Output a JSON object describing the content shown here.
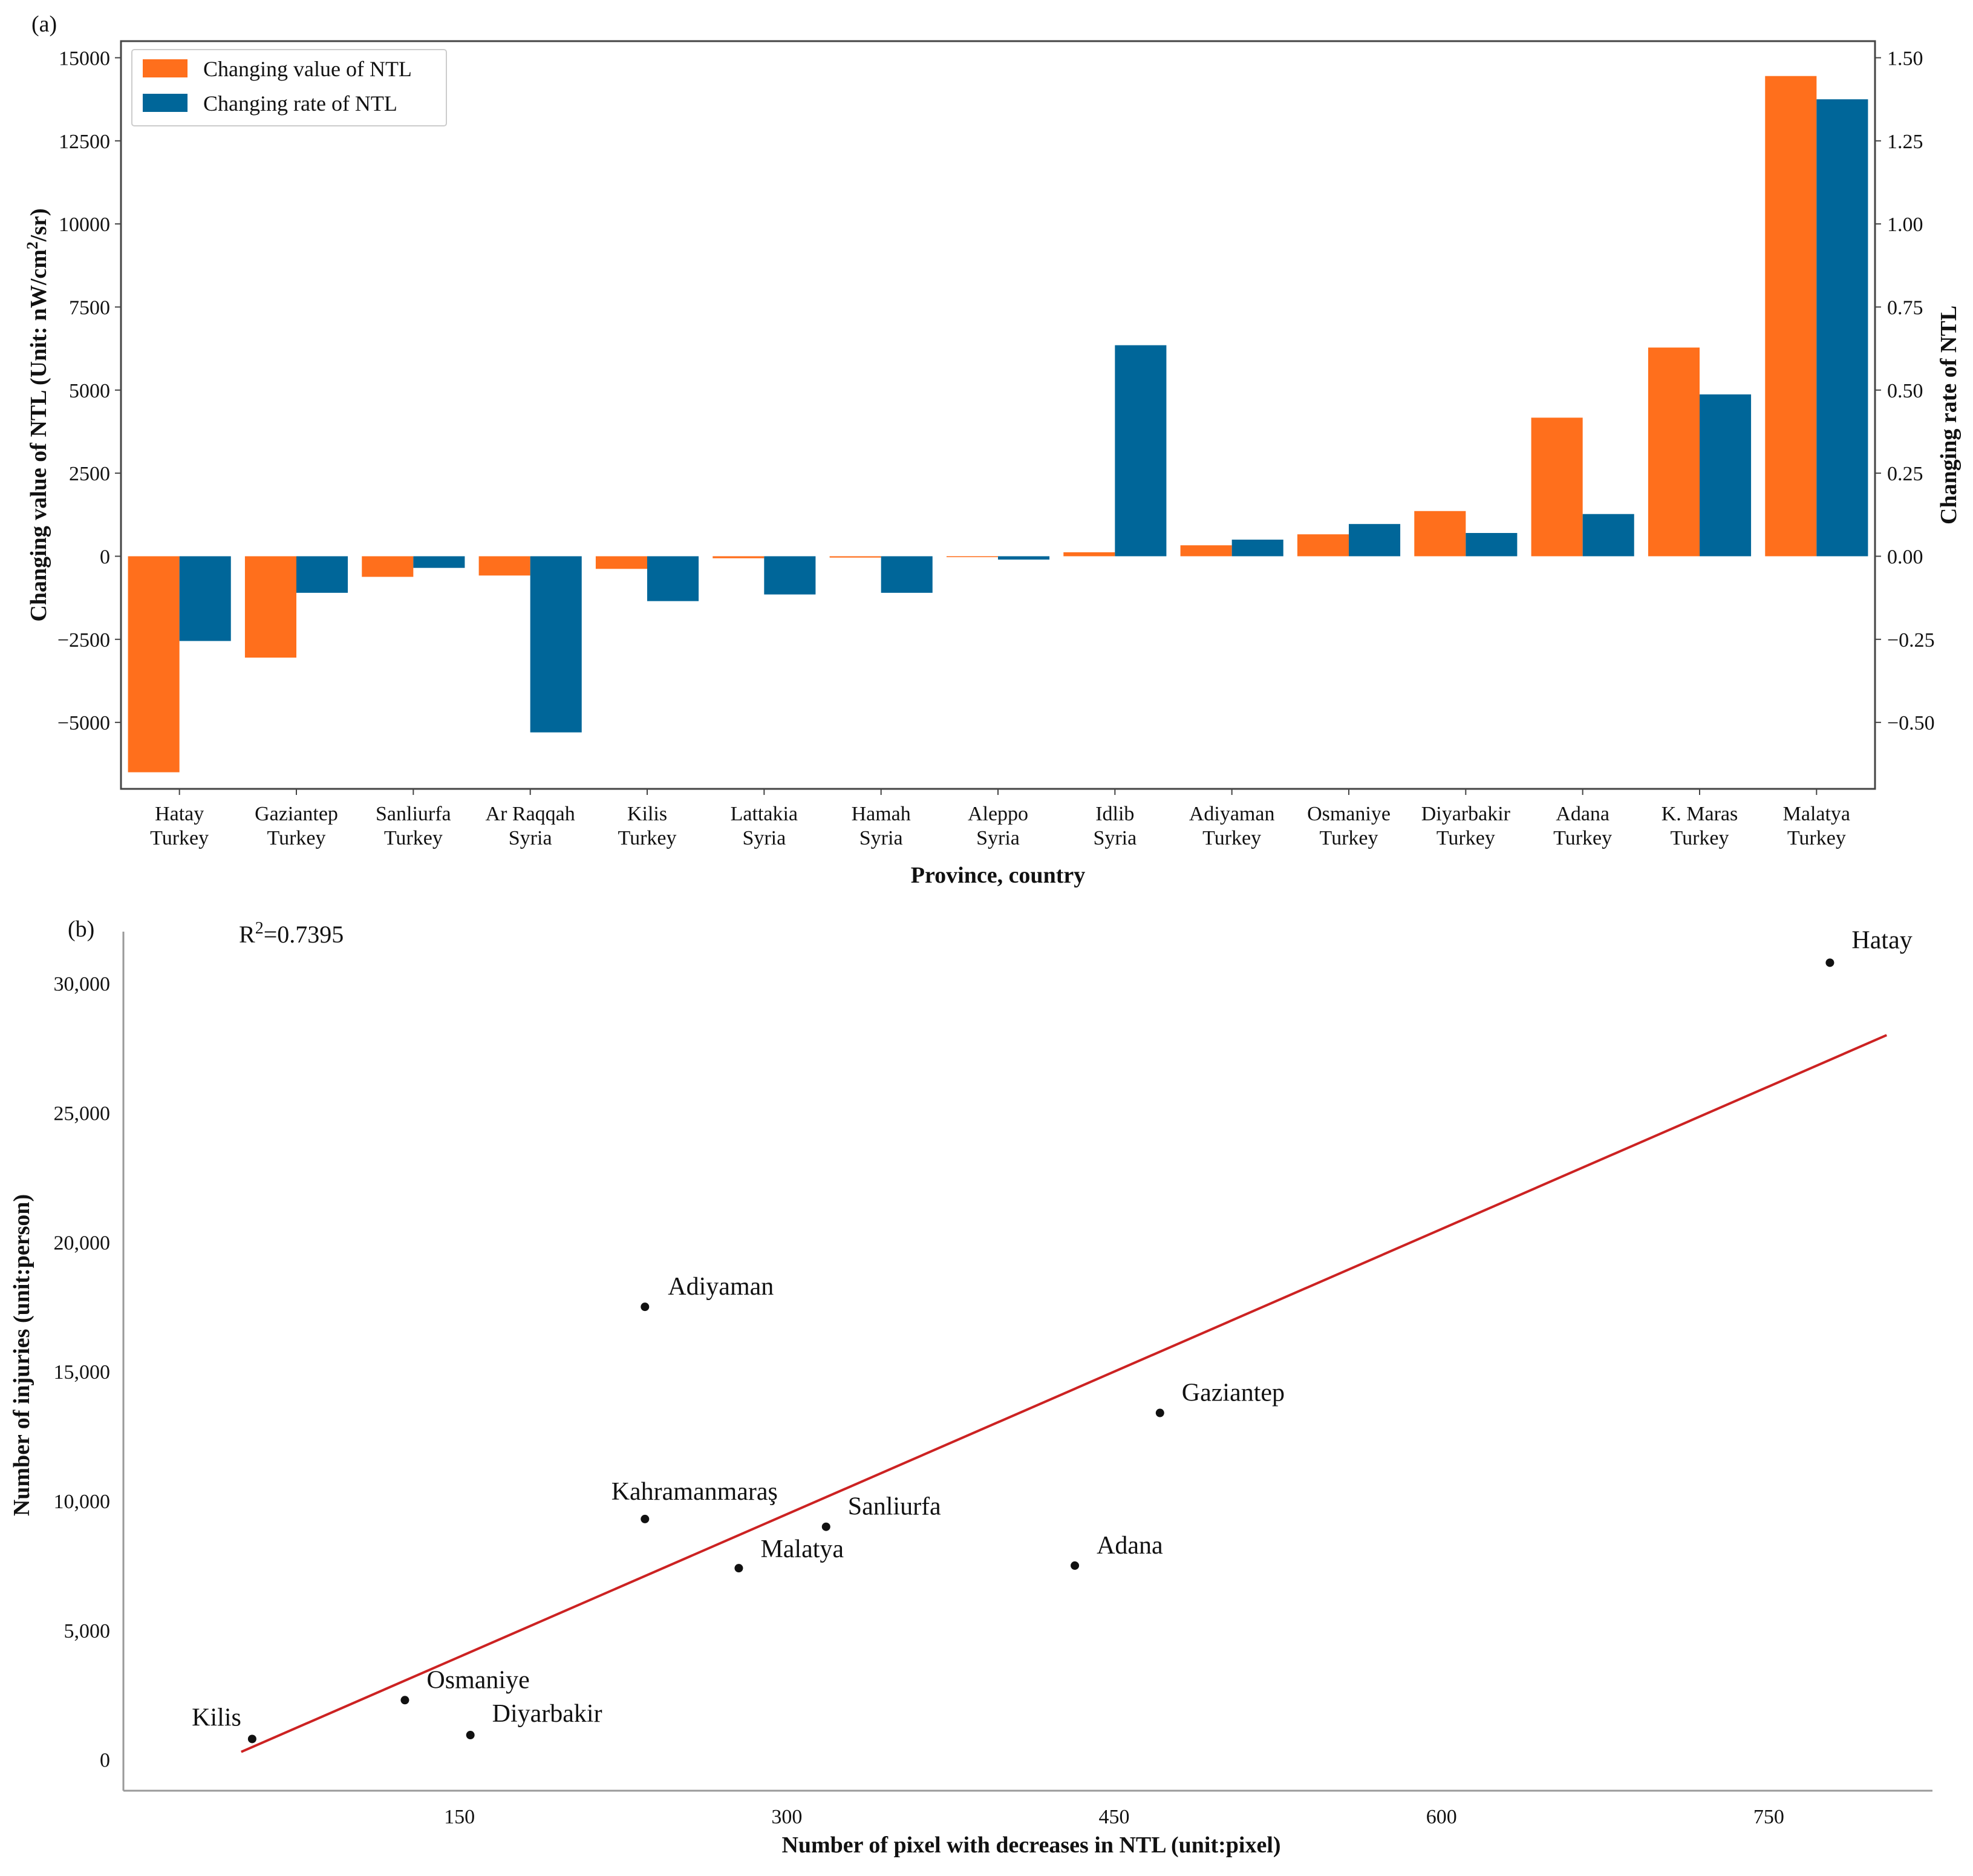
{
  "chart_data": [
    {
      "panel": "(a)",
      "type": "bar",
      "categories": [
        [
          "Hatay",
          "Turkey"
        ],
        [
          "Gaziantep",
          "Turkey"
        ],
        [
          "Sanliurfa",
          "Turkey"
        ],
        [
          "Ar Raqqah",
          "Syria"
        ],
        [
          "Kilis",
          "Turkey"
        ],
        [
          "Lattakia",
          "Syria"
        ],
        [
          "Hamah",
          "Syria"
        ],
        [
          "Aleppo",
          "Syria"
        ],
        [
          "Idlib",
          "Syria"
        ],
        [
          "Adiyaman",
          "Turkey"
        ],
        [
          "Osmaniye",
          "Turkey"
        ],
        [
          "Diyarbakir",
          "Turkey"
        ],
        [
          "Adana",
          "Turkey"
        ],
        [
          "K. Maras",
          "Turkey"
        ],
        [
          "Malatya",
          "Turkey"
        ]
      ],
      "series": [
        {
          "name": "Changing value of NTL",
          "axis": "left",
          "color": "#ff6f1c",
          "values": [
            -6500,
            -3050,
            -620,
            -580,
            -380,
            -60,
            -40,
            -20,
            120,
            330,
            660,
            1360,
            4170,
            6280,
            14450
          ]
        },
        {
          "name": "Changing rate of NTL",
          "axis": "right",
          "color": "#006699",
          "values": [
            -0.255,
            -0.11,
            -0.035,
            -0.53,
            -0.135,
            -0.115,
            -0.11,
            -0.01,
            0.635,
            0.05,
            0.097,
            0.07,
            0.127,
            0.487,
            1.375
          ]
        }
      ],
      "xlabel": "Province, country",
      "ylabel_left": "Changing value of NTL (Unit: nW/cm",
      "ylabel_left_sup": "2",
      "ylabel_left_tail": "/sr)",
      "ylabel_right": "Changing rate of NTL",
      "ylim_left": [
        -7000,
        15500
      ],
      "ylim_right": [
        -0.7,
        1.55
      ],
      "yticks_left": [
        -5000,
        -2500,
        0,
        2500,
        5000,
        7500,
        10000,
        12500,
        15000
      ],
      "yticks_right": [
        "−0.50",
        "−0.25",
        "0.00",
        "0.25",
        "0.50",
        "0.75",
        "1.00",
        "1.25",
        "1.50"
      ],
      "yticks_right_values": [
        -0.5,
        -0.25,
        0,
        0.25,
        0.5,
        0.75,
        1.0,
        1.25,
        1.5
      ],
      "legend": "top-left"
    },
    {
      "panel": "(b)",
      "type": "scatter",
      "points": [
        {
          "label": "Hatay",
          "x": 778,
          "y": 30800
        },
        {
          "label": "Adiyaman",
          "x": 235,
          "y": 17500
        },
        {
          "label": "Gaziantep",
          "x": 471,
          "y": 13400
        },
        {
          "label": "Kahramanmaraş",
          "x": 235,
          "y": 9300
        },
        {
          "label": "Sanliurfa",
          "x": 318,
          "y": 9000
        },
        {
          "label": "Malatya",
          "x": 278,
          "y": 7400
        },
        {
          "label": "Adana",
          "x": 432,
          "y": 7500
        },
        {
          "label": "Osmaniye",
          "x": 125,
          "y": 2300
        },
        {
          "label": "Kilis",
          "x": 55,
          "y": 800
        },
        {
          "label": "Diyarbakir",
          "x": 155,
          "y": 950
        }
      ],
      "fit_line": {
        "x": [
          50,
          804
        ],
        "y": [
          300,
          28000
        ],
        "color": "#cc2222"
      },
      "r2_prefix": "R",
      "r2_sup": "2",
      "r2_value": "=0.7395",
      "xlabel": "Number of pixel with decreases in NTL (unit:pixel)",
      "ylabel": "Number of injuries (unit:person)",
      "xlim": [
        -4,
        825
      ],
      "ylim": [
        -1200,
        32000
      ],
      "xticks": [
        150,
        300,
        450,
        600,
        750
      ],
      "yticks": [
        0,
        5000,
        10000,
        15000,
        20000,
        25000,
        30000
      ],
      "ytick_labels": [
        "0",
        "5,000",
        "10,000",
        "15,000",
        "20,000",
        "25,000",
        "30,000"
      ]
    }
  ]
}
